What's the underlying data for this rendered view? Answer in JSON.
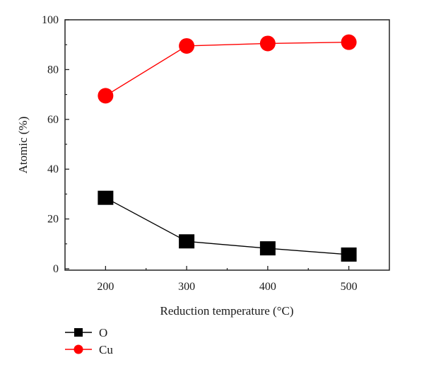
{
  "chart_data": {
    "type": "line",
    "x": [
      200,
      300,
      400,
      500
    ],
    "series": [
      {
        "name": "O",
        "values": [
          28.5,
          11.0,
          8.2,
          5.7
        ],
        "color": "#000000",
        "marker": "square"
      },
      {
        "name": "Cu",
        "values": [
          69.5,
          89.5,
          90.5,
          91.0
        ],
        "color": "#ff0000",
        "marker": "circle"
      }
    ],
    "xlabel": "Reduction temperature (°C)",
    "ylabel": "Atomic (%)",
    "xlim": [
      150,
      550
    ],
    "ylim": [
      0,
      100
    ],
    "x_ticks": [
      200,
      300,
      400,
      500
    ],
    "y_ticks": [
      0,
      20,
      40,
      60,
      80,
      100
    ],
    "grid": false,
    "legend_position": "bottom-left"
  }
}
